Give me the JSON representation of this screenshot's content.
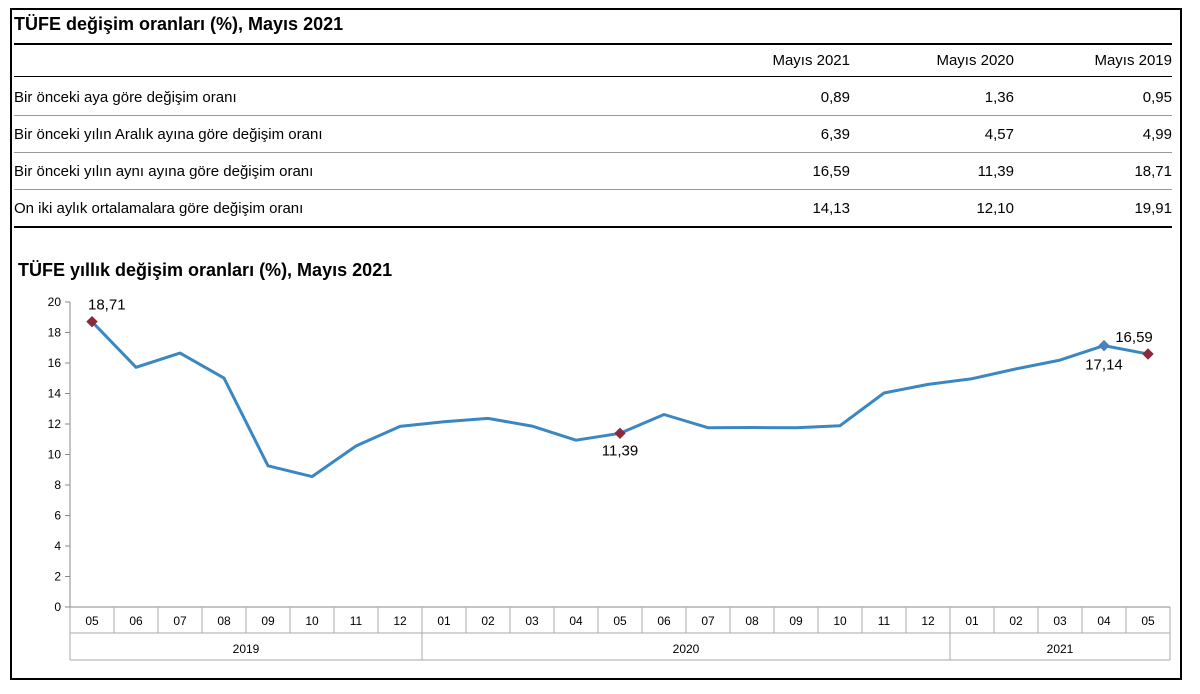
{
  "table": {
    "title": "TÜFE değişim oranları (%), Mayıs 2021",
    "columns": [
      "Mayıs 2021",
      "Mayıs 2020",
      "Mayıs 2019"
    ],
    "rows": [
      {
        "label": "Bir önceki aya göre değişim oranı",
        "values": [
          "0,89",
          "1,36",
          "0,95"
        ]
      },
      {
        "label": "Bir önceki yılın Aralık ayına göre değişim oranı",
        "values": [
          "6,39",
          "4,57",
          "4,99"
        ]
      },
      {
        "label": "Bir önceki yılın aynı ayına göre değişim oranı",
        "values": [
          "16,59",
          "11,39",
          "18,71"
        ]
      },
      {
        "label": "On iki aylık ortalamalara göre değişim oranı",
        "values": [
          "14,13",
          "12,10",
          "19,91"
        ]
      }
    ]
  },
  "chart_data": {
    "type": "line",
    "title": "TÜFE yıllık değişim oranları (%), Mayıs 2021",
    "xlabel": "",
    "ylabel": "",
    "ylim": [
      0,
      20
    ],
    "yticks": [
      "0",
      "2",
      "4",
      "6",
      "8",
      "10",
      "12",
      "14",
      "16",
      "18",
      "20"
    ],
    "grid": false,
    "categories": [
      "05",
      "06",
      "07",
      "08",
      "09",
      "10",
      "11",
      "12",
      "01",
      "02",
      "03",
      "04",
      "05",
      "06",
      "07",
      "08",
      "09",
      "10",
      "11",
      "12",
      "01",
      "02",
      "03",
      "04",
      "05"
    ],
    "year_groups": [
      {
        "label": "2019",
        "count": 8
      },
      {
        "label": "2020",
        "count": 12
      },
      {
        "label": "2021",
        "count": 5
      }
    ],
    "series": [
      {
        "color": "#3a87c2",
        "values": [
          18.71,
          15.72,
          16.65,
          15.01,
          9.26,
          8.55,
          10.56,
          11.84,
          12.15,
          12.37,
          11.86,
          10.94,
          11.39,
          12.62,
          11.76,
          11.77,
          11.75,
          11.89,
          14.03,
          14.6,
          14.97,
          15.61,
          16.19,
          17.14,
          16.59
        ]
      }
    ],
    "highlight_points": [
      {
        "index": 0,
        "label": "18,71",
        "color": "#8b2a3c"
      },
      {
        "index": 12,
        "label": "11,39",
        "color": "#8b2a3c"
      },
      {
        "index": 23,
        "label": "17,14",
        "color": "#4a7fc0"
      },
      {
        "index": 24,
        "label": "16,59",
        "color": "#8b2a3c"
      }
    ]
  }
}
